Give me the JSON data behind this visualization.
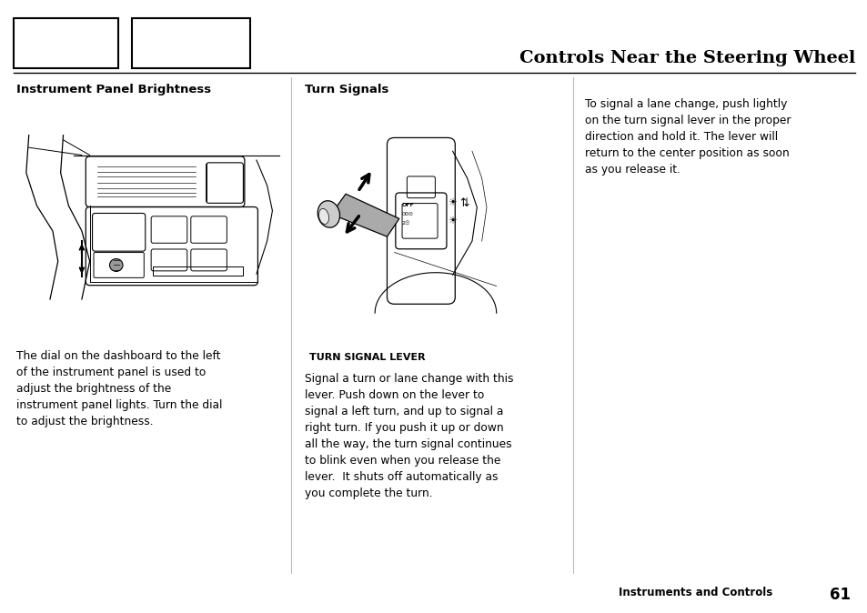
{
  "title": "Controls Near the Steering Wheel",
  "section1_heading": "Instrument Panel Brightness",
  "section2_heading": "Turn Signals",
  "section1_lines": [
    "The dial on the dashboard to the left",
    "of the instrument panel is used to",
    "adjust the brightness of the",
    "instrument panel lights. Turn the dial",
    "to adjust the brightness."
  ],
  "section2_label": "TURN SIGNAL LEVER",
  "section2_lines": [
    "Signal a turn or lane change with this",
    "lever. Push down on the lever to",
    "signal a left turn, and up to signal a",
    "right turn. If you push it up or down",
    "all the way, the turn signal continues",
    "to blink even when you release the",
    "lever.  It shuts off automatically as",
    "you complete the turn."
  ],
  "section3_lines": [
    "To signal a lane change, push lightly",
    "on the turn signal lever in the proper",
    "direction and hold it. The lever will",
    "return to the center position as soon",
    "as you release it."
  ],
  "footer_text": "Instruments and Controls",
  "footer_page": "61",
  "bg_color": "#ffffff",
  "text_color": "#000000"
}
